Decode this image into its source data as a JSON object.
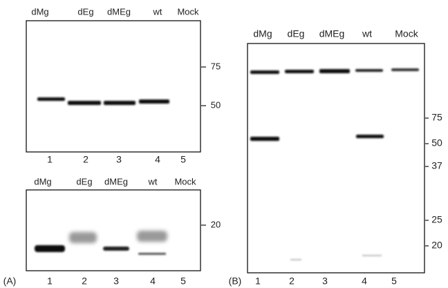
{
  "panel_a": {
    "label": "(A)",
    "top_blot": {
      "lanes": [
        "dMg",
        "dEg",
        "dMEg",
        "wt",
        "Mock"
      ],
      "lane_numbers": [
        "1",
        "2",
        "3",
        "4",
        "5"
      ],
      "markers": [
        "75",
        "50"
      ]
    },
    "bottom_blot": {
      "lanes": [
        "dMg",
        "dEg",
        "dMEg",
        "wt",
        "Mock"
      ],
      "lane_numbers": [
        "1",
        "2",
        "3",
        "4",
        "5"
      ],
      "markers": [
        "20"
      ]
    }
  },
  "panel_b": {
    "label": "(B)",
    "blot": {
      "lanes": [
        "dMg",
        "dEg",
        "dMEg",
        "wt",
        "Mock"
      ],
      "lane_numbers": [
        "1",
        "2",
        "3",
        "4",
        "5"
      ],
      "markers": [
        "75",
        "50",
        "37",
        "25",
        "20"
      ]
    }
  }
}
